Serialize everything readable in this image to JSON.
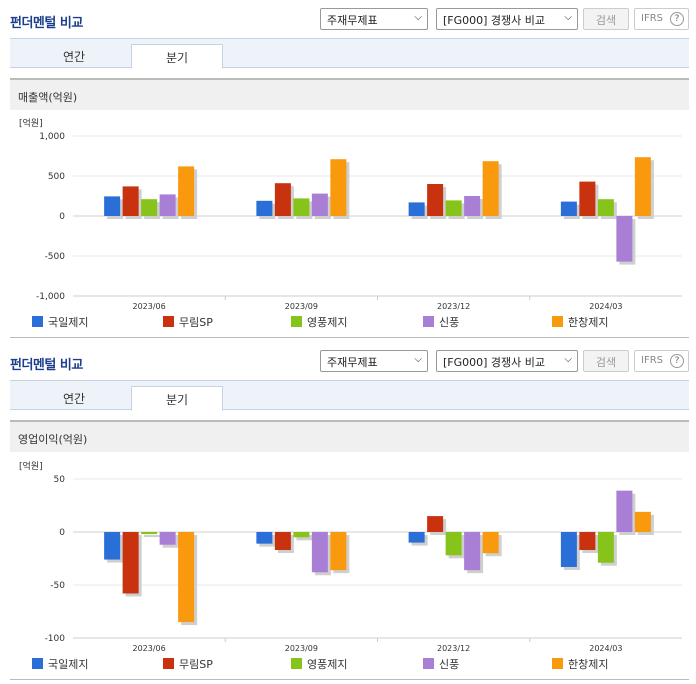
{
  "panels": [
    {
      "title": "펀더멘털 비교",
      "select1": "주재무제표",
      "select2": "[FG000] 경쟁사 비교",
      "search_label": "검색",
      "ifrs_label": "IFRS",
      "help_glyph": "?",
      "tabs": [
        {
          "label": "연간"
        },
        {
          "label": "분기"
        }
      ],
      "active_tab": 1,
      "chart_heading": "매출액(억원)"
    },
    {
      "title": "펀더멘털 비교",
      "select1": "주재무제표",
      "select2": "[FG000] 경쟁사 비교",
      "search_label": "검색",
      "ifrs_label": "IFRS",
      "help_glyph": "?",
      "tabs": [
        {
          "label": "연간"
        },
        {
          "label": "분기"
        }
      ],
      "active_tab": 1,
      "chart_heading": "영업이익(억원)"
    }
  ],
  "colors": {
    "국일제지": "#2a6ed8",
    "무림SP": "#c8320f",
    "영풍제지": "#86c41c",
    "신풍": "#a97fd6",
    "한창제지": "#f99a0e"
  },
  "chart_data": [
    {
      "type": "bar",
      "title": "매출액(억원)",
      "ylabel": "[억원]",
      "categories": [
        "2023/06",
        "2023/09",
        "2023/12",
        "2024/03"
      ],
      "ylim": [
        -1000,
        1000
      ],
      "yticks": [
        1000,
        500,
        0,
        -500,
        -1000
      ],
      "ytick_labels": [
        "1,000",
        "500",
        "0",
        "-500",
        "-1,000"
      ],
      "series": [
        {
          "name": "국일제지",
          "values": [
            245,
            190,
            170,
            180
          ]
        },
        {
          "name": "무림SP",
          "values": [
            370,
            410,
            400,
            430
          ]
        },
        {
          "name": "영풍제지",
          "values": [
            210,
            220,
            195,
            210
          ]
        },
        {
          "name": "신풍",
          "values": [
            270,
            280,
            250,
            -570
          ]
        },
        {
          "name": "한창제지",
          "values": [
            620,
            710,
            685,
            735
          ]
        }
      ],
      "legend": "bottom"
    },
    {
      "type": "bar",
      "title": "영업이익(억원)",
      "ylabel": "[억원]",
      "categories": [
        "2023/06",
        "2023/09",
        "2023/12",
        "2024/03"
      ],
      "ylim": [
        -100,
        50
      ],
      "yticks": [
        50,
        0,
        -50,
        -100
      ],
      "ytick_labels": [
        "50",
        "0",
        "-50",
        "-100"
      ],
      "series": [
        {
          "name": "국일제지",
          "values": [
            -26,
            -11,
            -10,
            -33
          ]
        },
        {
          "name": "무림SP",
          "values": [
            -58,
            -17,
            15,
            -17
          ]
        },
        {
          "name": "영풍제지",
          "values": [
            -2,
            -5,
            -22,
            -29
          ]
        },
        {
          "name": "신풍",
          "values": [
            -12,
            -38,
            -36,
            39
          ]
        },
        {
          "name": "한창제지",
          "values": [
            -85,
            -36,
            -20,
            19
          ]
        }
      ],
      "legend": "bottom"
    }
  ]
}
